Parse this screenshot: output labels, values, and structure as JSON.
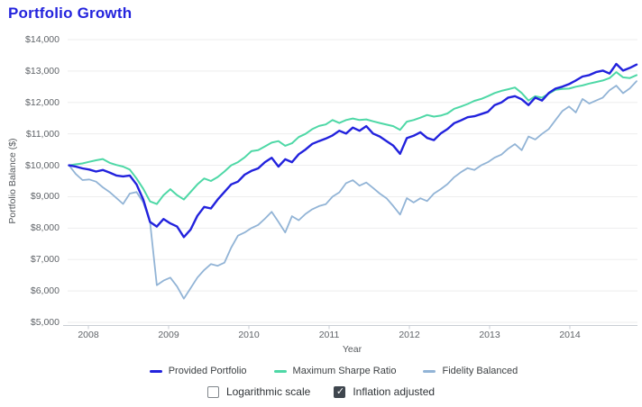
{
  "title": "Portfolio Growth",
  "colors": {
    "title": "#2424dd",
    "provided_portfolio": "#2222dd",
    "maximum_sharpe_ratio": "#4ed8a6",
    "fidelity_balanced": "#92b4d6",
    "gridline": "#ededee",
    "axis_line": "#c9ced4",
    "tick_text": "#5f6368"
  },
  "chart_data": {
    "type": "line",
    "title": "Portfolio Growth",
    "xlabel": "Year",
    "ylabel": "Portfolio Balance ($)",
    "ylim": [
      5000,
      14000
    ],
    "grid": true,
    "legend_position": "bottom",
    "x_frequency": "monthly",
    "x_ticks": [
      "2008",
      "2009",
      "2010",
      "2011",
      "2012",
      "2013",
      "2014"
    ],
    "y_ticks": [
      {
        "value": 14000,
        "label": "$14,000"
      },
      {
        "value": 13000,
        "label": "$13,000"
      },
      {
        "value": 12000,
        "label": "$12,000"
      },
      {
        "value": 11000,
        "label": "$11,000"
      },
      {
        "value": 10000,
        "label": "$10,000"
      },
      {
        "value": 9000,
        "label": "$9,000"
      },
      {
        "value": 8000,
        "label": "$8,000"
      },
      {
        "value": 7000,
        "label": "$7,000"
      },
      {
        "value": 6000,
        "label": "$6,000"
      },
      {
        "value": 5000,
        "label": "$5,000"
      }
    ],
    "series": [
      {
        "name": "Provided Portfolio",
        "color": "#2222dd",
        "values": [
          10000,
          9960,
          9900,
          9865,
          9800,
          9850,
          9770,
          9675,
          9645,
          9675,
          9390,
          8910,
          8195,
          8050,
          8290,
          8150,
          8050,
          7715,
          7955,
          8390,
          8675,
          8625,
          8910,
          9150,
          9390,
          9480,
          9700,
          9820,
          9900,
          10100,
          10240,
          9960,
          10190,
          10100,
          10350,
          10500,
          10680,
          10770,
          10850,
          10950,
          11100,
          11010,
          11200,
          11100,
          11245,
          11010,
          10915,
          10770,
          10625,
          10365,
          10865,
          10940,
          11050,
          10870,
          10800,
          11010,
          11150,
          11340,
          11430,
          11530,
          11560,
          11630,
          11700,
          11915,
          12000,
          12155,
          12200,
          12100,
          11915,
          12155,
          12060,
          12300,
          12440,
          12500,
          12585,
          12700,
          12825,
          12870,
          12965,
          13015,
          12920,
          13225,
          13015,
          13100,
          13205
        ]
      },
      {
        "name": "Maximum Sharpe Ratio",
        "color": "#4ed8a6",
        "values": [
          10000,
          10030,
          10060,
          10110,
          10160,
          10200,
          10080,
          10010,
          9960,
          9865,
          9580,
          9250,
          8850,
          8765,
          9050,
          9240,
          9050,
          8910,
          9150,
          9390,
          9580,
          9500,
          9625,
          9800,
          10000,
          10100,
          10250,
          10450,
          10480,
          10600,
          10720,
          10770,
          10620,
          10700,
          10900,
          11000,
          11150,
          11250,
          11300,
          11440,
          11345,
          11440,
          11490,
          11440,
          11460,
          11400,
          11345,
          11295,
          11245,
          11125,
          11390,
          11440,
          11515,
          11600,
          11550,
          11580,
          11650,
          11800,
          11870,
          11950,
          12050,
          12110,
          12200,
          12300,
          12370,
          12420,
          12475,
          12300,
          12060,
          12200,
          12150,
          12280,
          12400,
          12430,
          12440,
          12500,
          12540,
          12600,
          12650,
          12700,
          12775,
          12965,
          12800,
          12775,
          12870
        ]
      },
      {
        "name": "Fidelity Balanced",
        "color": "#92b4d6",
        "values": [
          10000,
          9725,
          9530,
          9550,
          9480,
          9300,
          9150,
          8960,
          8770,
          9100,
          9150,
          8820,
          8195,
          6185,
          6330,
          6425,
          6140,
          5755,
          6090,
          6425,
          6665,
          6855,
          6800,
          6900,
          7380,
          7760,
          7860,
          8000,
          8100,
          8300,
          8520,
          8200,
          7860,
          8380,
          8250,
          8450,
          8600,
          8700,
          8760,
          9000,
          9140,
          9430,
          9525,
          9350,
          9450,
          9280,
          9100,
          8950,
          8700,
          8430,
          8955,
          8815,
          8950,
          8860,
          9100,
          9240,
          9400,
          9620,
          9780,
          9910,
          9850,
          10000,
          10100,
          10245,
          10340,
          10530,
          10675,
          10480,
          10915,
          10820,
          11000,
          11155,
          11440,
          11725,
          11870,
          11680,
          12110,
          11965,
          12060,
          12155,
          12390,
          12535,
          12295,
          12450,
          12680
        ]
      }
    ]
  },
  "controls": {
    "logarithmic": {
      "label": "Logarithmic scale",
      "checked": false
    },
    "inflation": {
      "label": "Inflation adjusted",
      "checked": true
    }
  }
}
